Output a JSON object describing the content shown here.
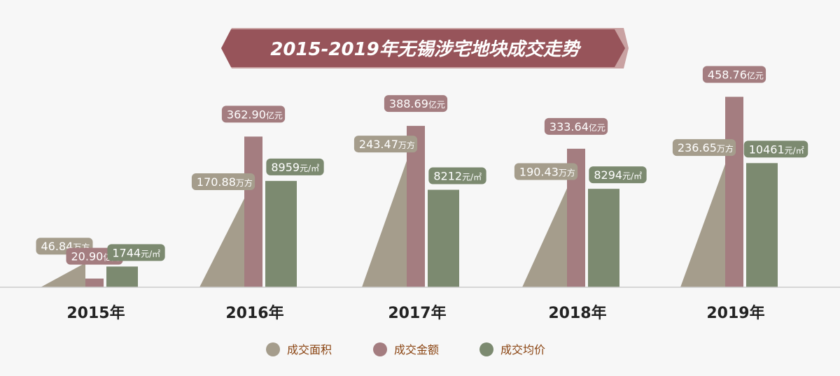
{
  "title": "2015-2019年无锡涉宅地块成交走势",
  "chart_data": {
    "type": "bar",
    "categories": [
      "2015年",
      "2016年",
      "2017年",
      "2018年",
      "2019年"
    ],
    "series": [
      {
        "name": "成交面积",
        "unit": "万方",
        "values": [
          46.84,
          170.88,
          243.47,
          190.43,
          236.65
        ],
        "labels": [
          "46.84",
          "170.88",
          "243.47",
          "190.43",
          "236.65"
        ],
        "color": "#a59d8c"
      },
      {
        "name": "成交金额",
        "unit": "亿元",
        "values": [
          20.9,
          362.9,
          388.69,
          333.64,
          458.76
        ],
        "labels": [
          "20.90",
          "362.90",
          "388.69",
          "333.64",
          "458.76"
        ],
        "color": "#a47d80"
      },
      {
        "name": "成交均价",
        "unit": "元/㎡",
        "values": [
          1744,
          8959,
          8212,
          8294,
          10461
        ],
        "labels": [
          "1744",
          "8959",
          "8212",
          "8294",
          "10461"
        ],
        "color": "#7c8a70"
      }
    ],
    "legend_position": "bottom",
    "grid": false
  },
  "colors": {
    "title_banner": "#97545a",
    "title_banner_edge": "#c9a2a2",
    "axis": "#cccccc",
    "label_text": "#ffffff",
    "category_text": "#222222",
    "legend_text": "#8b4513"
  }
}
